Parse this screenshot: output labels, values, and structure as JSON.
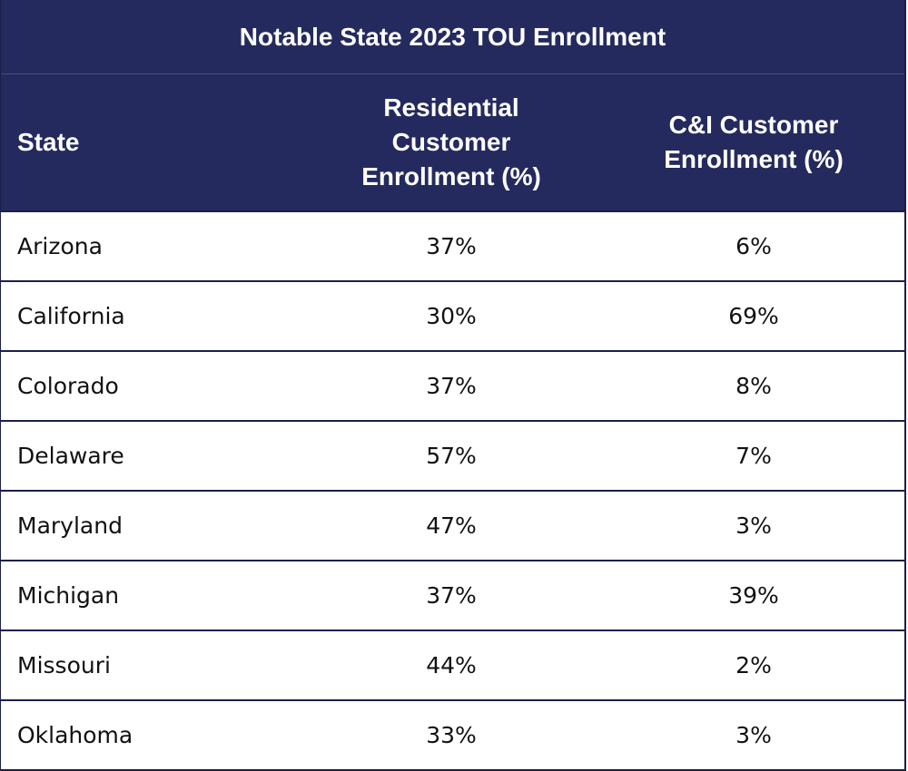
{
  "chart_data": {
    "type": "table",
    "title": "Notable State 2023 TOU Enrollment",
    "columns": [
      [
        "State"
      ],
      [
        "Residential",
        "Customer",
        "Enrollment (%)"
      ],
      [
        "C&I Customer",
        "Enrollment (%)"
      ]
    ],
    "rows": [
      [
        "Arizona",
        "37%",
        "6%"
      ],
      [
        "California",
        "30%",
        "69%"
      ],
      [
        "Colorado",
        "37%",
        "8%"
      ],
      [
        "Delaware",
        "57%",
        "7%"
      ],
      [
        "Maryland",
        "47%",
        "3%"
      ],
      [
        "Michigan",
        "37%",
        "39%"
      ],
      [
        "Missouri",
        "44%",
        "2%"
      ],
      [
        "Oklahoma",
        "33%",
        "3%"
      ]
    ],
    "colors": {
      "header_bg": "#252a5e",
      "header_text": "#ffffff",
      "rule": "#1b1f4a"
    }
  }
}
